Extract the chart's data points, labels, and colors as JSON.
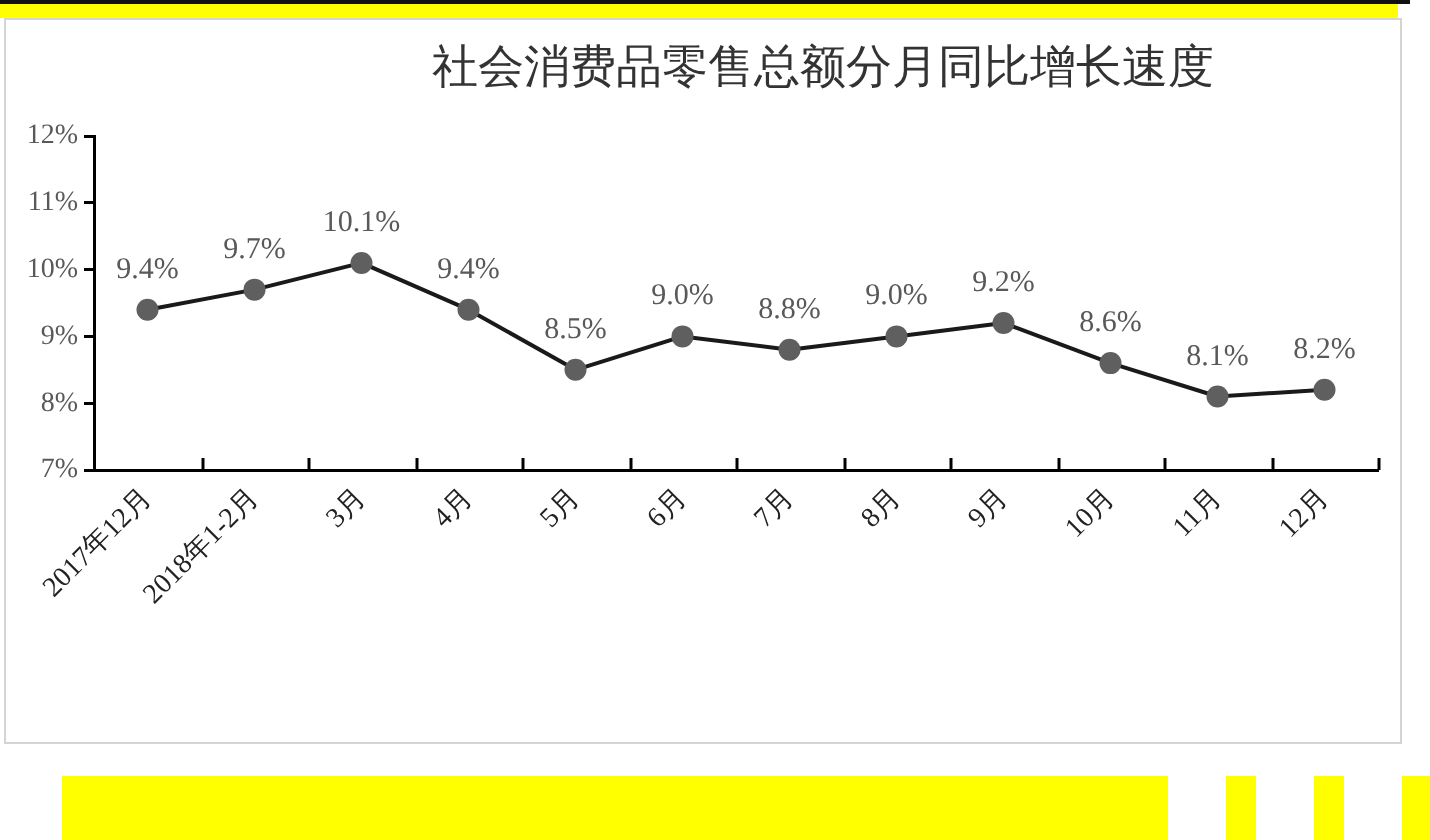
{
  "chart_data": {
    "type": "line",
    "title": "社会消费品零售总额分月同比增长速度",
    "categories": [
      "2017年12月",
      "2018年1-2月",
      "3月",
      "4月",
      "5月",
      "6月",
      "7月",
      "8月",
      "9月",
      "10月",
      "11月",
      "12月"
    ],
    "values": [
      9.4,
      9.7,
      10.1,
      9.4,
      8.5,
      9.0,
      8.8,
      9.0,
      9.2,
      8.6,
      8.1,
      8.2
    ],
    "color": "#1a1a1a",
    "colors": [
      "#5f5f5f",
      "#5f5f5f",
      "#5f5f5f",
      "#5f5f5f",
      "#5f5f5f",
      "#5f5f5f",
      "#5f5f5f",
      "#5f5f5f",
      "#5f5f5f",
      "#5f5f5f",
      "#5f5f5f",
      "#5f5f5f"
    ],
    "value_labels": [
      "9.4%",
      "9.7%",
      "10.1%",
      "9.4%",
      "8.5%",
      "9.0%",
      "8.8%",
      "9.0%",
      "9.2%",
      "8.6%",
      "8.1%",
      "8.2%"
    ],
    "ylim": [
      7,
      12
    ],
    "yticks": [
      {
        "value": 7,
        "label": "7%"
      },
      {
        "value": 8,
        "label": "8%"
      },
      {
        "value": 9,
        "label": "9%"
      },
      {
        "value": 10,
        "label": "10%"
      },
      {
        "value": 11,
        "label": "11%"
      },
      {
        "value": 12,
        "label": "12%"
      }
    ],
    "grid": false,
    "marker": "circle",
    "line_style": "solid"
  }
}
